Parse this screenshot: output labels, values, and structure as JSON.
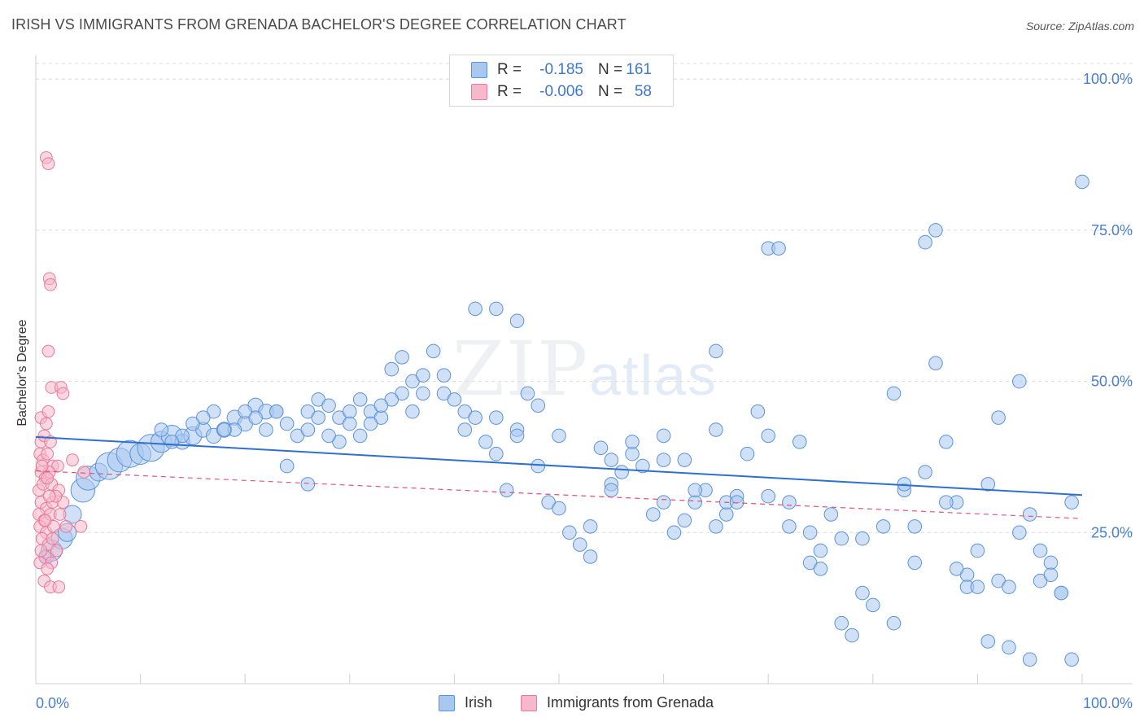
{
  "title": "IRISH VS IMMIGRANTS FROM GRENADA BACHELOR'S DEGREE CORRELATION CHART",
  "source": "Source: ZipAtlas.com",
  "watermark": {
    "zip": "ZIP",
    "atlas": "atlas"
  },
  "legend": {
    "rows": [
      {
        "r_label": "R =",
        "r_value": "-0.185",
        "n_label": "N =",
        "n_value": "161",
        "color": "#a9c8f0"
      },
      {
        "r_label": "R =",
        "r_value": "-0.006",
        "n_label": "N =",
        "n_value": "58",
        "color": "#f6b8ca"
      }
    ]
  },
  "bottom_legend": [
    "Irish",
    "Immigrants from Grenada"
  ],
  "chart_data": {
    "type": "scatter",
    "ylabel": "Bachelor's Degree",
    "xlabel": "",
    "xlim": [
      0,
      100
    ],
    "ylim": [
      0,
      105
    ],
    "x_tick_labels": [
      "0.0%",
      "100.0%"
    ],
    "y_tick_labels": [
      "25.0%",
      "50.0%",
      "75.0%",
      "100.0%"
    ],
    "y_ticks": [
      25,
      50,
      75,
      100
    ],
    "colors": {
      "irish_fill": "#a9c8f0",
      "irish_stroke": "#5b93d8",
      "irish_line": "#2f6fcf",
      "grenada_fill": "#f6b8ca",
      "grenada_stroke": "#e8799b",
      "grenada_line": "#e0507a",
      "axis_text": "#4a7fd0",
      "grid": "#dcdcdc"
    },
    "trend_lines": [
      {
        "name": "Irish",
        "x": [
          0,
          100
        ],
        "y": [
          40.8,
          31.2
        ],
        "style": "solid"
      },
      {
        "name": "Immigrants from Grenada",
        "x": [
          0,
          100
        ],
        "y": [
          35.2,
          27.3
        ],
        "style": "dashed"
      }
    ],
    "series": [
      {
        "name": "Irish",
        "points": [
          [
            1,
            21,
            10
          ],
          [
            1.5,
            22,
            14
          ],
          [
            2.5,
            24,
            14
          ],
          [
            3,
            25,
            12
          ],
          [
            3.5,
            28,
            12
          ],
          [
            4.5,
            32,
            16
          ],
          [
            5,
            34,
            16
          ],
          [
            6,
            35,
            12
          ],
          [
            7,
            36,
            18
          ],
          [
            8,
            37,
            16
          ],
          [
            9,
            38,
            18
          ],
          [
            10,
            38,
            14
          ],
          [
            11,
            39,
            18
          ],
          [
            12,
            40,
            14
          ],
          [
            13,
            41,
            14
          ],
          [
            14,
            40,
            10
          ],
          [
            15,
            41,
            12
          ],
          [
            16,
            42,
            10
          ],
          [
            17,
            41,
            10
          ],
          [
            18,
            42,
            10
          ],
          [
            19,
            44,
            10
          ],
          [
            20,
            43,
            10
          ],
          [
            21,
            46,
            10
          ],
          [
            22,
            45,
            10
          ],
          [
            23,
            45,
            9
          ],
          [
            24,
            43,
            9
          ],
          [
            25,
            41,
            9
          ],
          [
            26,
            45,
            9
          ],
          [
            27,
            47,
            9
          ],
          [
            28,
            46,
            9
          ],
          [
            29,
            44,
            9
          ],
          [
            30,
            45,
            9
          ],
          [
            31,
            47,
            9
          ],
          [
            32,
            45,
            9
          ],
          [
            33,
            44,
            9
          ],
          [
            34,
            52,
            9
          ],
          [
            35,
            54,
            9
          ],
          [
            36,
            50,
            9
          ],
          [
            37,
            51,
            9
          ],
          [
            38,
            55,
            9
          ],
          [
            39,
            48,
            9
          ],
          [
            40,
            47,
            9
          ],
          [
            41,
            45,
            9
          ],
          [
            42,
            44,
            9
          ],
          [
            43,
            40,
            9
          ],
          [
            44,
            38,
            9
          ],
          [
            45,
            32,
            9
          ],
          [
            46,
            42,
            9
          ],
          [
            47,
            48,
            9
          ],
          [
            48,
            36,
            9
          ],
          [
            49,
            30,
            9
          ],
          [
            50,
            41,
            9
          ],
          [
            51,
            25,
            9
          ],
          [
            52,
            23,
            9
          ],
          [
            53,
            21,
            9
          ],
          [
            54,
            39,
            9
          ],
          [
            55,
            33,
            9
          ],
          [
            56,
            35,
            9
          ],
          [
            57,
            38,
            9
          ],
          [
            58,
            36,
            9
          ],
          [
            59,
            28,
            9
          ],
          [
            60,
            30,
            9
          ],
          [
            61,
            25,
            9
          ],
          [
            62,
            27,
            9
          ],
          [
            63,
            30,
            9
          ],
          [
            64,
            32,
            9
          ],
          [
            65,
            26,
            9
          ],
          [
            66,
            28,
            9
          ],
          [
            67,
            31,
            9
          ],
          [
            68,
            38,
            9
          ],
          [
            69,
            45,
            9
          ],
          [
            70,
            72,
            9
          ],
          [
            71,
            72,
            9
          ],
          [
            72,
            30,
            9
          ],
          [
            73,
            40,
            9
          ],
          [
            74,
            20,
            9
          ],
          [
            75,
            22,
            9
          ],
          [
            76,
            28,
            9
          ],
          [
            77,
            10,
            9
          ],
          [
            78,
            8,
            9
          ],
          [
            79,
            15,
            9
          ],
          [
            80,
            13,
            9
          ],
          [
            81,
            26,
            9
          ],
          [
            82,
            48,
            9
          ],
          [
            83,
            32,
            9
          ],
          [
            84,
            20,
            9
          ],
          [
            85,
            73,
            9
          ],
          [
            86,
            75,
            9
          ],
          [
            87,
            40,
            9
          ],
          [
            88,
            30,
            9
          ],
          [
            89,
            18,
            9
          ],
          [
            90,
            22,
            9
          ],
          [
            91,
            7,
            9
          ],
          [
            92,
            17,
            9
          ],
          [
            93,
            16,
            9
          ],
          [
            94,
            25,
            9
          ],
          [
            95,
            28,
            9
          ],
          [
            96,
            22,
            9
          ],
          [
            97,
            20,
            9
          ],
          [
            98,
            15,
            9
          ],
          [
            99,
            30,
            9
          ],
          [
            100,
            83,
            9
          ],
          [
            22,
            42,
            9
          ],
          [
            24,
            36,
            9
          ],
          [
            26,
            33,
            9
          ],
          [
            35,
            48,
            9
          ],
          [
            44,
            62,
            9
          ],
          [
            46,
            60,
            9
          ],
          [
            42,
            62,
            9
          ],
          [
            53,
            26,
            9
          ],
          [
            55,
            37,
            9
          ],
          [
            57,
            40,
            9
          ],
          [
            60,
            41,
            9
          ],
          [
            62,
            37,
            9
          ],
          [
            63,
            32,
            9
          ],
          [
            65,
            42,
            9
          ],
          [
            66,
            30,
            9
          ],
          [
            67,
            30,
            9
          ],
          [
            70,
            31,
            9
          ],
          [
            72,
            26,
            9
          ],
          [
            74,
            25,
            9
          ],
          [
            75,
            19,
            9
          ],
          [
            77,
            24,
            9
          ],
          [
            79,
            24,
            9
          ],
          [
            82,
            10,
            9
          ],
          [
            83,
            33,
            9
          ],
          [
            84,
            26,
            9
          ],
          [
            85,
            35,
            9
          ],
          [
            86,
            53,
            9
          ],
          [
            87,
            30,
            9
          ],
          [
            88,
            19,
            9
          ],
          [
            89,
            16,
            9
          ],
          [
            90,
            16,
            9
          ],
          [
            91,
            33,
            9
          ],
          [
            92,
            44,
            9
          ],
          [
            93,
            6,
            9
          ],
          [
            94,
            50,
            9
          ],
          [
            95,
            4,
            9
          ],
          [
            96,
            17,
            9
          ],
          [
            97,
            18,
            9
          ],
          [
            98,
            15,
            9
          ],
          [
            99,
            4,
            9
          ],
          [
            70,
            41,
            9
          ],
          [
            65,
            55,
            9
          ],
          [
            60,
            37,
            9
          ],
          [
            55,
            32,
            9
          ],
          [
            50,
            29,
            9
          ],
          [
            48,
            46,
            9
          ],
          [
            46,
            41,
            9
          ],
          [
            44,
            44,
            9
          ],
          [
            41,
            42,
            9
          ],
          [
            39,
            51,
            9
          ],
          [
            37,
            48,
            9
          ],
          [
            36,
            45,
            9
          ],
          [
            34,
            47,
            9
          ],
          [
            33,
            46,
            9
          ],
          [
            32,
            43,
            9
          ],
          [
            31,
            41,
            9
          ],
          [
            30,
            43,
            9
          ],
          [
            29,
            40,
            9
          ],
          [
            28,
            41,
            9
          ],
          [
            27,
            44,
            9
          ],
          [
            26,
            42,
            9
          ],
          [
            23,
            45,
            9
          ],
          [
            21,
            44,
            9
          ],
          [
            20,
            45,
            9
          ],
          [
            19,
            42,
            9
          ],
          [
            18,
            42,
            9
          ],
          [
            17,
            45,
            9
          ],
          [
            16,
            44,
            9
          ],
          [
            15,
            43,
            9
          ],
          [
            14,
            41,
            9
          ],
          [
            13,
            40,
            9
          ],
          [
            12,
            42,
            9
          ]
        ]
      },
      {
        "name": "Immigrants from Grenada",
        "points": [
          [
            1,
            87,
            8
          ],
          [
            1.2,
            86,
            8
          ],
          [
            1.3,
            67,
            8
          ],
          [
            1.4,
            66,
            8
          ],
          [
            1.2,
            55,
            8
          ],
          [
            1.5,
            49,
            8
          ],
          [
            2.4,
            49,
            8
          ],
          [
            2.6,
            48,
            8
          ],
          [
            0.5,
            44,
            8
          ],
          [
            1.0,
            43,
            8
          ],
          [
            1.2,
            45,
            8
          ],
          [
            0.5,
            40,
            8
          ],
          [
            0.8,
            41,
            8
          ],
          [
            1.4,
            40,
            8
          ],
          [
            0.4,
            38,
            8
          ],
          [
            0.7,
            37,
            8
          ],
          [
            1.1,
            38,
            8
          ],
          [
            1.6,
            36,
            8
          ],
          [
            2.1,
            36,
            8
          ],
          [
            0.5,
            35,
            8
          ],
          [
            0.9,
            34,
            8
          ],
          [
            1.3,
            35,
            8
          ],
          [
            0.3,
            32,
            8
          ],
          [
            0.7,
            33,
            8
          ],
          [
            1.5,
            33,
            8
          ],
          [
            2.2,
            32,
            8
          ],
          [
            0.5,
            30,
            8
          ],
          [
            1.0,
            29,
            8
          ],
          [
            1.6,
            30,
            8
          ],
          [
            0.3,
            28,
            8
          ],
          [
            0.8,
            27,
            8
          ],
          [
            1.4,
            28,
            8
          ],
          [
            2.3,
            28,
            8
          ],
          [
            0.4,
            26,
            8
          ],
          [
            1.0,
            25,
            8
          ],
          [
            1.7,
            26,
            8
          ],
          [
            2.9,
            26,
            8
          ],
          [
            4.3,
            26,
            8
          ],
          [
            0.6,
            24,
            8
          ],
          [
            1.2,
            23,
            8
          ],
          [
            0.9,
            21,
            8
          ],
          [
            1.5,
            20,
            8
          ],
          [
            0.4,
            20,
            8
          ],
          [
            1.1,
            19,
            8
          ],
          [
            0.8,
            17,
            8
          ],
          [
            1.4,
            16,
            8
          ],
          [
            2.2,
            16,
            8
          ],
          [
            4.6,
            35,
            8
          ],
          [
            3.5,
            37,
            8
          ],
          [
            2.6,
            30,
            8
          ],
          [
            1.9,
            31,
            8
          ],
          [
            0.6,
            36,
            8
          ],
          [
            1.3,
            31,
            8
          ],
          [
            0.9,
            27,
            8
          ],
          [
            1.6,
            24,
            8
          ],
          [
            0.5,
            22,
            8
          ],
          [
            2.0,
            22,
            8
          ],
          [
            1.1,
            34,
            8
          ]
        ]
      }
    ]
  }
}
